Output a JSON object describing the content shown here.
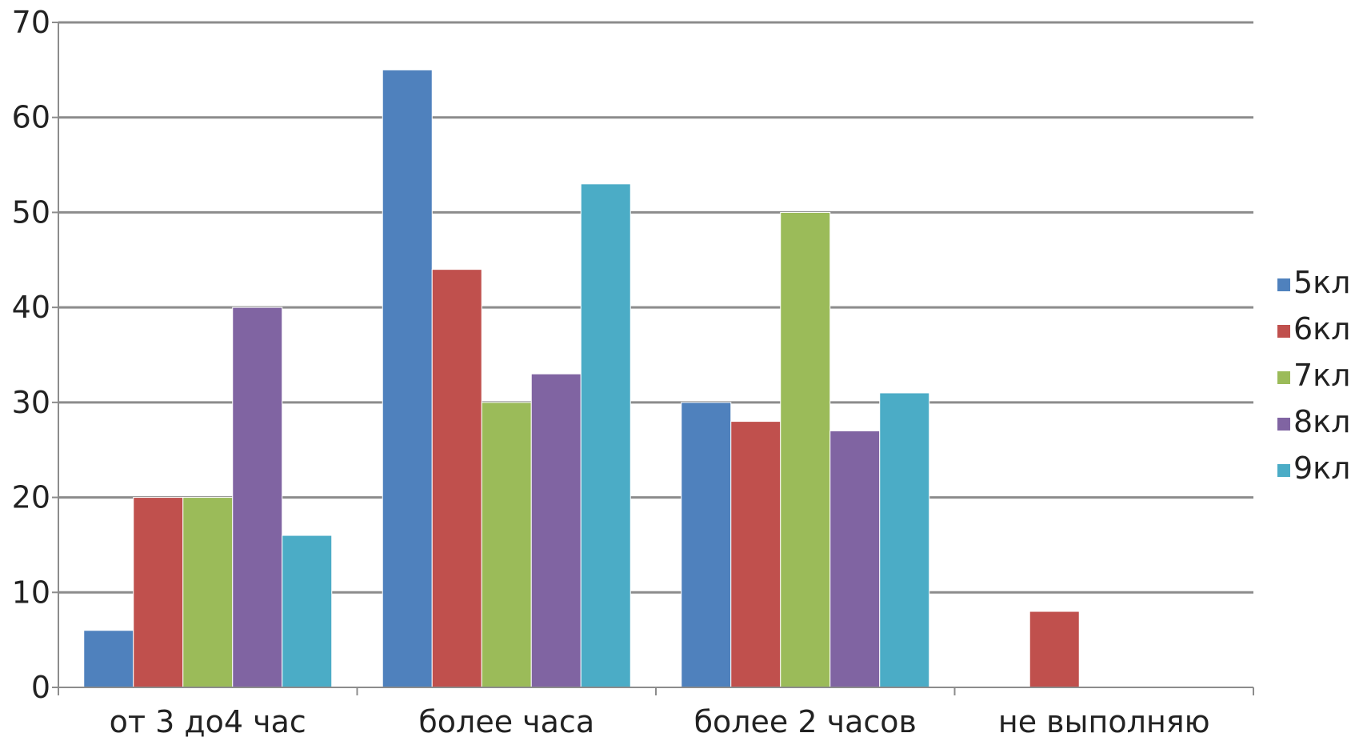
{
  "chart_data": {
    "type": "bar",
    "categories": [
      "от 3 до4 час",
      "более часа",
      "более 2 часов",
      "не выполняю"
    ],
    "series": [
      {
        "name": "5кл",
        "values": [
          6,
          65,
          30,
          0
        ],
        "color": "#4F81BD"
      },
      {
        "name": "6кл",
        "values": [
          20,
          44,
          28,
          8
        ],
        "color": "#C0504D"
      },
      {
        "name": "7кл",
        "values": [
          20,
          30,
          50,
          0
        ],
        "color": "#9BBB59"
      },
      {
        "name": "8кл",
        "values": [
          40,
          33,
          27,
          0
        ],
        "color": "#8064A2"
      },
      {
        "name": "9кл",
        "values": [
          16,
          53,
          31,
          0
        ],
        "color": "#4BACC6"
      }
    ],
    "ylim": [
      0,
      70
    ],
    "yticks": [
      0,
      10,
      20,
      30,
      40,
      50,
      60,
      70
    ],
    "grid": true,
    "legend_position": "right"
  }
}
